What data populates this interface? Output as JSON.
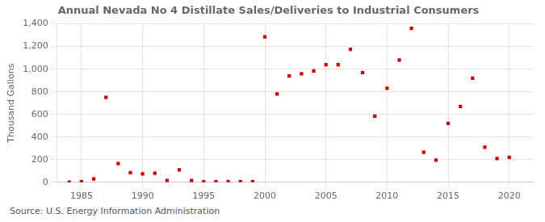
{
  "chart_data": {
    "type": "scatter",
    "title": "Annual Nevada No 4 Distillate Sales/Deliveries to Industrial Consumers",
    "y_label": "Thousand Gallons",
    "annotations": [
      "Source: U.S. Energy Information Administration"
    ],
    "x": [
      1984,
      1985,
      1986,
      1987,
      1988,
      1989,
      1990,
      1991,
      1992,
      1993,
      1994,
      1995,
      1996,
      1997,
      1998,
      1999,
      2000,
      2001,
      2002,
      2003,
      2004,
      2005,
      2006,
      2007,
      2008,
      2009,
      2010,
      2011,
      2012,
      2013,
      2014,
      2015,
      2016,
      2017,
      2018,
      2019,
      2020
    ],
    "values": [
      2,
      5,
      30,
      750,
      165,
      85,
      75,
      80,
      15,
      110,
      15,
      5,
      5,
      5,
      5,
      5,
      1285,
      780,
      940,
      960,
      985,
      1040,
      1040,
      1175,
      970,
      585,
      830,
      1080,
      1360,
      265,
      195,
      520,
      670,
      920,
      310,
      210,
      220
    ],
    "color": "#cc0000",
    "marker": "square",
    "xlim": [
      1983,
      2022
    ],
    "xticks": [
      1985,
      1990,
      1995,
      2000,
      2005,
      2010,
      2015,
      2020
    ],
    "ylim": [
      0,
      1400
    ],
    "yticks": [
      0,
      200,
      400,
      600,
      800,
      {
        "value": 1000,
        "label": "1,000"
      },
      {
        "value": 1200,
        "label": "1,200"
      },
      {
        "value": 1400,
        "label": "1,400"
      }
    ],
    "grid": true
  }
}
